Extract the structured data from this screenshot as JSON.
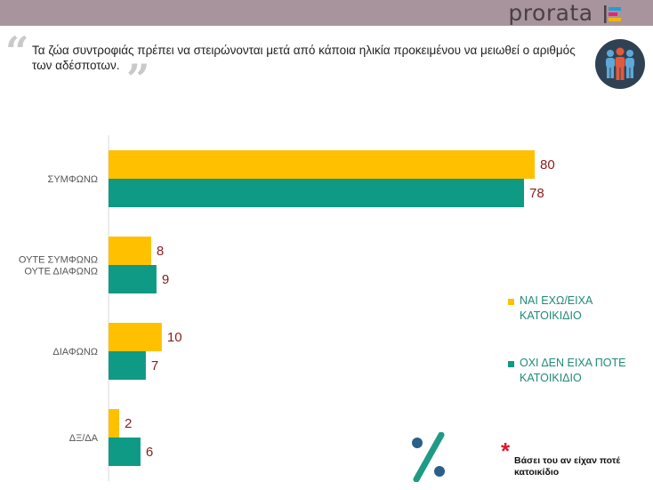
{
  "header": {
    "brand": "prorata",
    "brand_mark_colors": [
      "#1e9fd8",
      "#e8227a",
      "#f2b600"
    ]
  },
  "question": {
    "text": "Τα ζώα συντροφιάς πρέπει να στειρώνονται μετά από κάποια ηλικία προκειμένου να μειωθεί ο αριθμός των αδέσποτων.",
    "quote_open": "“",
    "quote_close": "”"
  },
  "badge": {
    "icon": "people-group-icon"
  },
  "chart_data": {
    "type": "bar",
    "orientation": "horizontal",
    "categories": [
      "ΣΥΜΦΩΝΩ",
      "ΟΥΤΕ ΣΥΜΦΩΝΩ ΟΥΤΕ ΔΙΑΦΩΝΩ",
      "ΔΙΑΦΩΝΩ",
      "ΔΞ/ΔΑ"
    ],
    "category_lines": [
      [
        "ΣΥΜΦΩΝΩ"
      ],
      [
        "ΟΥΤΕ ΣΥΜΦΩΝΩ",
        "ΟΥΤΕ ΔΙΑΦΩΝΩ"
      ],
      [
        "ΔΙΑΦΩΝΩ"
      ],
      [
        "ΔΞ/ΔΑ"
      ]
    ],
    "series": [
      {
        "name": "ΝΑΙ ΕΧΩ/ΕΙΧΑ ΚΑΤΟΙΚΙΔΙΟ",
        "name_lines": [
          "ΝΑΙ ΕΧΩ/ΕΙΧΑ",
          "ΚΑΤΟΙΚΙΔΙΟ"
        ],
        "color": "#ffc000",
        "values": [
          80,
          8,
          10,
          2
        ]
      },
      {
        "name": "ΟΧΙ ΔΕΝ ΕΙΧΑ ΠΟΤΕ ΚΑΤΟΙΚΙΔΙΟ",
        "name_lines": [
          "ΟΧΙ ΔΕΝ ΕΙΧΑ ΠΟΤΕ",
          "ΚΑΤΟΙΚΙΔΙΟ"
        ],
        "color": "#0e9a84",
        "values": [
          78,
          9,
          7,
          6
        ]
      }
    ],
    "xlim": [
      0,
      100
    ],
    "legend_position": "right",
    "title": "",
    "xlabel": "",
    "ylabel": "",
    "value_label_color": "#8b1d1d"
  },
  "footnote": {
    "marker": "*",
    "text": "Βάσει του αν είχαν ποτέ κατοικίδιο"
  },
  "percent_icon": {
    "icon": "percent-icon",
    "color": "#2a5f88",
    "symbol": "%"
  }
}
